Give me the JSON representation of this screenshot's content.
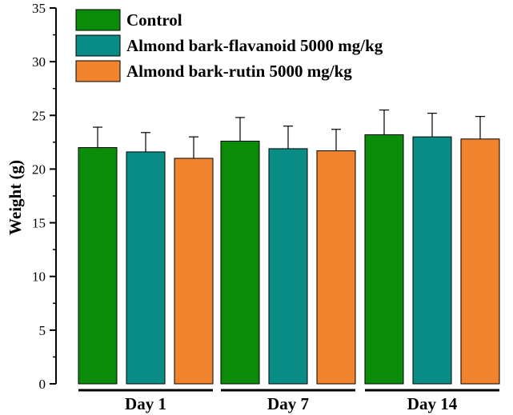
{
  "chart_data": {
    "type": "bar",
    "categories": [
      "Day 1",
      "Day 7",
      "Day 14"
    ],
    "ylabel": "Weight (g)",
    "xlabel": "",
    "ylim": [
      0,
      35
    ],
    "yticks": [
      0,
      5,
      10,
      15,
      20,
      25,
      30,
      35
    ],
    "grid": false,
    "legend_position": "top-left",
    "error_bars": true,
    "series": [
      {
        "name": "Control",
        "color": "#0a8c0a",
        "values": [
          22.0,
          22.6,
          23.2
        ],
        "errors": [
          1.9,
          2.2,
          2.3
        ]
      },
      {
        "name": "Almond bark-flavanoid 5000 mg/kg",
        "color": "#0a8c86",
        "values": [
          21.6,
          21.9,
          23.0
        ],
        "errors": [
          1.8,
          2.1,
          2.2
        ]
      },
      {
        "name": "Almond bark-rutin 5000 mg/kg",
        "color": "#f0832d",
        "values": [
          21.0,
          21.7,
          22.8
        ],
        "errors": [
          2.0,
          2.0,
          2.1
        ]
      }
    ]
  }
}
